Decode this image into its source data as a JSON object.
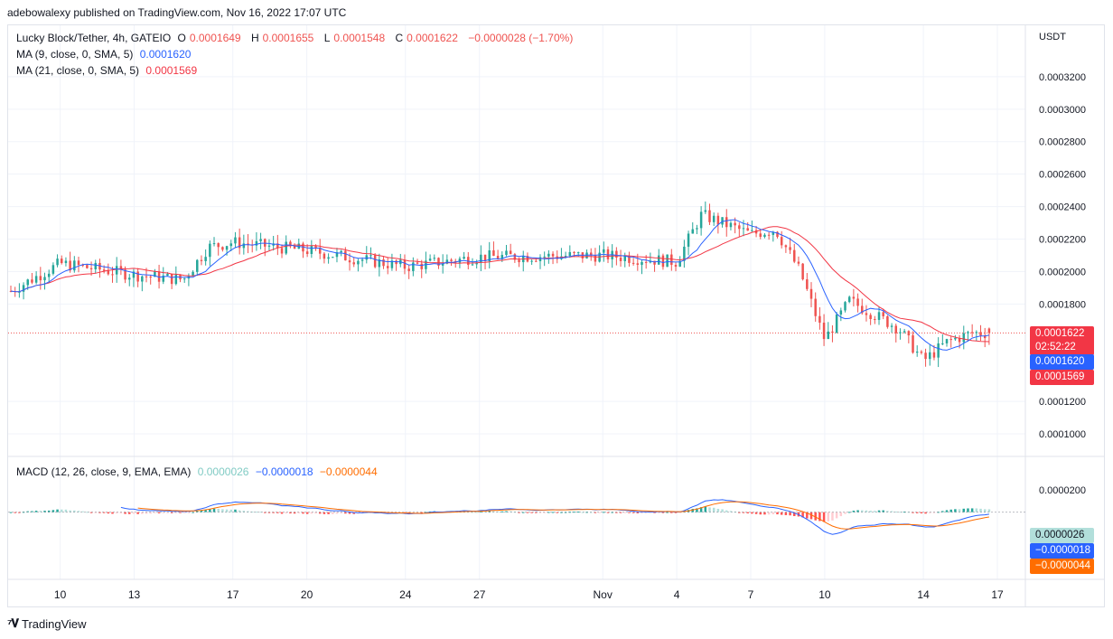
{
  "header": {
    "attribution": "adebowalexy published on TradingView.com, Nov 16, 2022 17:07 UTC"
  },
  "legend": {
    "symbol": "Lucky Block/Tether, 4h, GATEIO",
    "o_label": "O",
    "o": "0.0001649",
    "h_label": "H",
    "h": "0.0001655",
    "l_label": "L",
    "l": "0.0001548",
    "c_label": "C",
    "c": "0.0001622",
    "change": "−0.0000028 (−1.70%)",
    "ma9_label": "MA (9, close, 0, SMA, 5)",
    "ma9_value": "0.0001620",
    "ma21_label": "MA (21, close, 0, SMA, 5)",
    "ma21_value": "0.0001569",
    "macd_label": "MACD (12, 26, close, 9, EMA, EMA)",
    "macd_hist": "0.0000026",
    "macd_line": "−0.0000018",
    "macd_signal": "−0.0000044"
  },
  "price_axis": {
    "currency": "USDT",
    "tick_labels": [
      "0.0003200",
      "0.0003000",
      "0.0002800",
      "0.0002600",
      "0.0002400",
      "0.0002200",
      "0.0002000",
      "0.0001800",
      "0.0001200",
      "0.0001000"
    ],
    "macd_tick_label": "0.0000200",
    "last_price_tag": "0.0001622",
    "countdown_tag": "02:52:22",
    "ma9_tag": "0.0001620",
    "ma21_tag": "0.0001569",
    "macd_hist_tag": "0.0000026",
    "macd_line_tag": "−0.0000018",
    "macd_signal_tag": "−0.0000044"
  },
  "time_axis": {
    "labels": [
      "10",
      "13",
      "17",
      "20",
      "24",
      "27",
      "Nov",
      "4",
      "7",
      "10",
      "14",
      "17"
    ]
  },
  "colors": {
    "up": "#26a69a",
    "down": "#ef5350",
    "ma9": "#2962ff",
    "ma21": "#f23645",
    "macd_line": "#2962ff",
    "signal": "#ff6d00",
    "hist_pos_strong": "#26a69a",
    "hist_pos_weak": "#b2dfdb",
    "hist_neg_strong": "#ff5252",
    "hist_neg_weak": "#ffcdd2"
  },
  "brand": {
    "name": "TradingView"
  },
  "chart_data": {
    "type": "candlestick",
    "title": "Lucky Block/Tether, 4h, GATEIO",
    "y_unit": "USDT",
    "ylim": [
      9e-05,
      0.000345
    ],
    "x_start": "2022-10-08",
    "x_end": "2022-11-17",
    "x_tick_labels": [
      "10",
      "13",
      "17",
      "20",
      "24",
      "27",
      "Nov",
      "4",
      "7",
      "10",
      "14",
      "17"
    ],
    "close_approx": [
      {
        "date": "2022-10-08",
        "close": 0.000188
      },
      {
        "date": "2022-10-10",
        "close": 0.000205
      },
      {
        "date": "2022-10-13",
        "close": 0.000198
      },
      {
        "date": "2022-10-15",
        "close": 0.000195
      },
      {
        "date": "2022-10-16",
        "close": 0.000215
      },
      {
        "date": "2022-10-17",
        "close": 0.000218
      },
      {
        "date": "2022-10-20",
        "close": 0.000213
      },
      {
        "date": "2022-10-24",
        "close": 0.000203
      },
      {
        "date": "2022-10-27",
        "close": 0.000209
      },
      {
        "date": "2022-11-01",
        "close": 0.00021
      },
      {
        "date": "2022-11-04",
        "close": 0.000206
      },
      {
        "date": "2022-11-05",
        "close": 0.000235
      },
      {
        "date": "2022-11-07",
        "close": 0.000223
      },
      {
        "date": "2022-11-08",
        "close": 0.000226
      },
      {
        "date": "2022-11-09",
        "close": 0.0002
      },
      {
        "date": "2022-11-10",
        "close": 0.000158
      },
      {
        "date": "2022-11-11",
        "close": 0.000182
      },
      {
        "date": "2022-11-13",
        "close": 0.000165
      },
      {
        "date": "2022-11-14",
        "close": 0.000145
      },
      {
        "date": "2022-11-15",
        "close": 0.000157
      },
      {
        "date": "2022-11-16",
        "close": 0.0001622
      }
    ],
    "last_candle": {
      "open": 0.0001649,
      "high": 0.0001655,
      "low": 0.0001548,
      "close": 0.0001622
    },
    "ma9_last": 0.000162,
    "ma21_last": 0.0001569,
    "macd": {
      "hist": 2.6e-06,
      "macd": -1.8e-06,
      "signal": -4.4e-06,
      "ylim": [
        -6e-05,
        3e-05
      ]
    }
  }
}
